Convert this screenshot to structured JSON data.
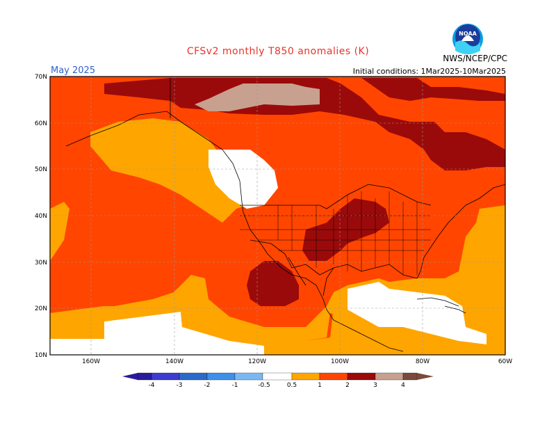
{
  "title": "CFSv2 monthly T850 anomalies (K)",
  "month_label": "May 2025",
  "initial_conditions": "Initial conditions: 1Mar2025-10Mar2025",
  "agency": "NWS/NCEP/CPC",
  "logo_text": "NOAA",
  "lat_labels": [
    "70N",
    "60N",
    "50N",
    "40N",
    "30N",
    "20N",
    "10N"
  ],
  "lon_labels": [
    "160W",
    "140W",
    "120W",
    "100W",
    "80W",
    "60W"
  ],
  "colorbar": {
    "ticks": [
      "-4",
      "-3",
      "-2",
      "-1",
      "-0.5",
      "0.5",
      "1",
      "2",
      "3",
      "4"
    ],
    "colors": [
      "#2a1a9c",
      "#3c3cd0",
      "#2a6ac8",
      "#3d8fe8",
      "#7ab8f5",
      "#ffffff",
      "#ffa500",
      "#ff4500",
      "#d42a00",
      "#9b0a0a",
      "#c8a08f",
      "#7a4a3a"
    ]
  },
  "colors": {
    "white": "#ffffff",
    "orange": "#ffa500",
    "redorange": "#ff4500",
    "red": "#d42a00",
    "darkred": "#9b0a0a",
    "tan": "#c8a08f"
  }
}
